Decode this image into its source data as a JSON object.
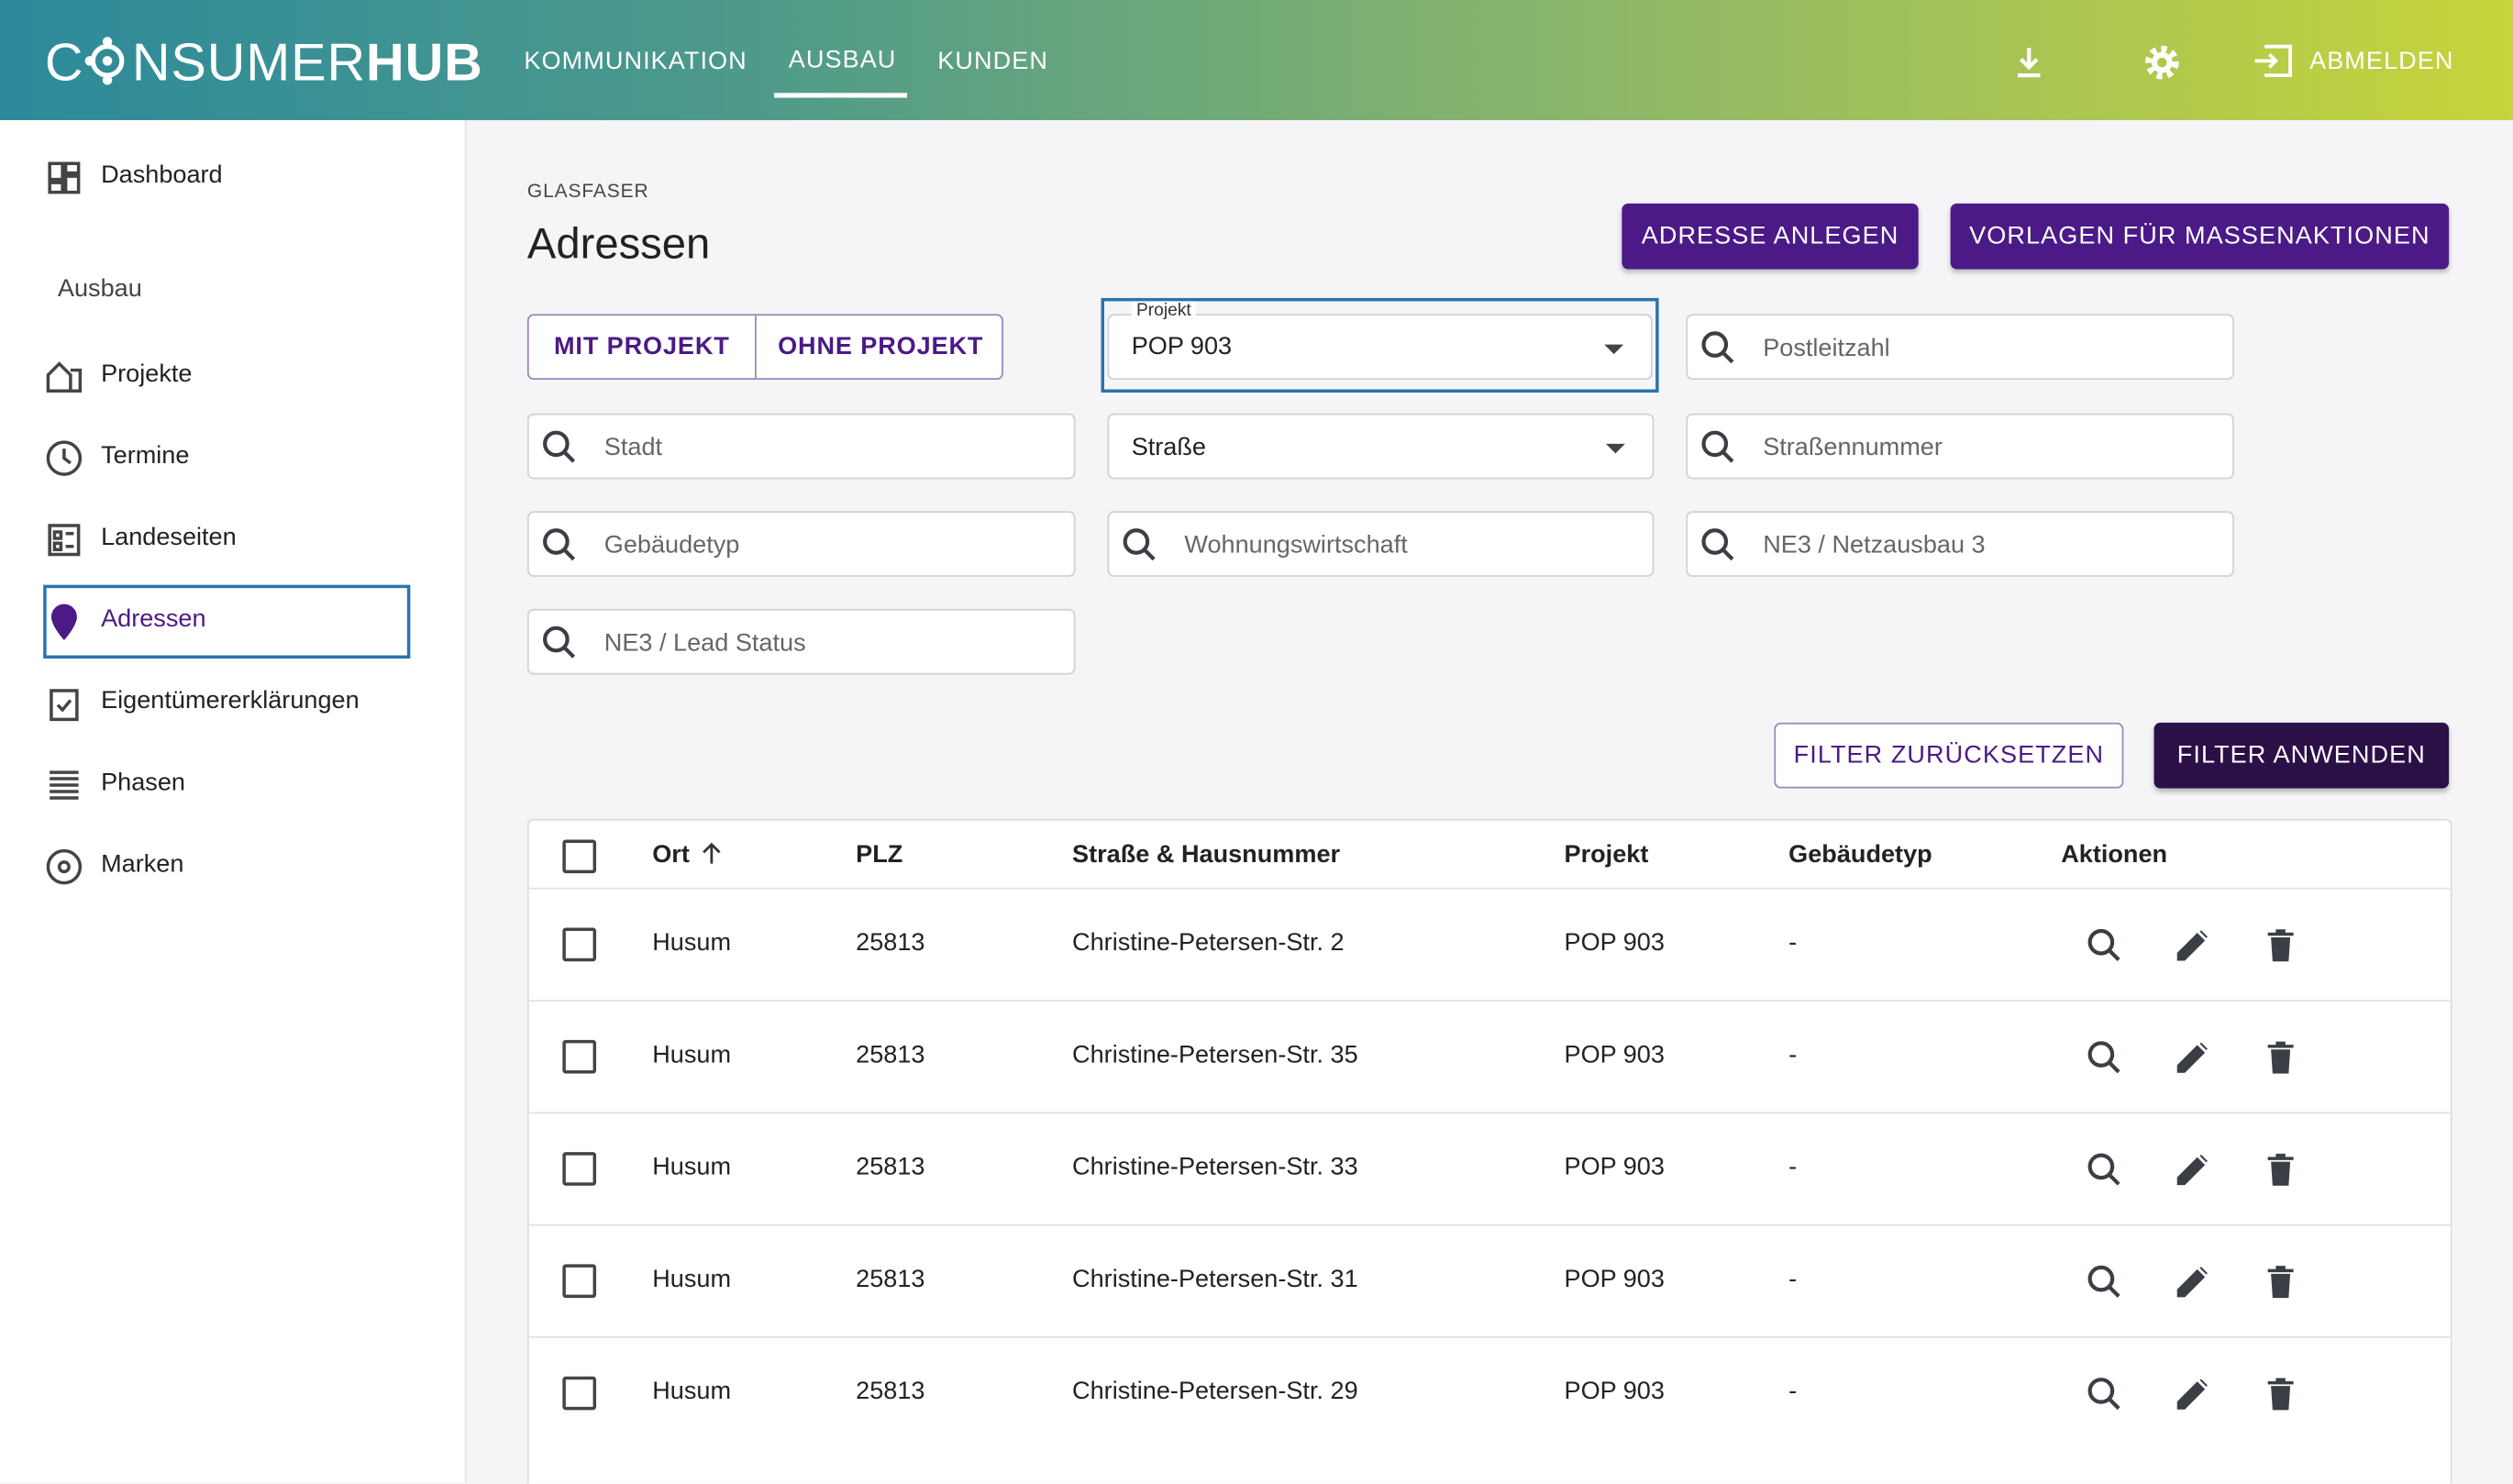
{
  "header": {
    "logo_start": "C",
    "logo_middle": "NSUMER",
    "logo_end": "HUB",
    "nav": [
      "KOMMUNIKATION",
      "AUSBAU",
      "KUNDEN"
    ],
    "logout": "ABMELDEN"
  },
  "sidebar": {
    "top": "Dashboard",
    "section": "Ausbau",
    "items": [
      "Projekte",
      "Termine",
      "Landeseiten",
      "Adressen",
      "Eigentümererklärungen",
      "Phasen",
      "Marken"
    ]
  },
  "page": {
    "breadcrumb": "GLASFASER",
    "title": "Adressen",
    "buttons": [
      "ADRESSE ANLEGEN",
      "VORLAGEN FÜR MASSENAKTIONEN"
    ]
  },
  "filters": {
    "toggle": [
      "MIT PROJEKT",
      "OHNE PROJEKT"
    ],
    "project_label": "Projekt",
    "project_value": "POP 903",
    "postcode": "Postleitzahl",
    "city": "Stadt",
    "street": "Straße",
    "street_number": "Straßennummer",
    "building_type": "Gebäudetyp",
    "housing": "Wohnungswirtschaft",
    "ne3_network": "NE3 / Netzausbau 3",
    "ne3_lead": "NE3 / Lead Status",
    "reset": "FILTER ZURÜCKSETZEN",
    "apply": "FILTER ANWENDEN"
  },
  "table": {
    "columns": [
      "Ort",
      "PLZ",
      "Straße & Hausnummer",
      "Projekt",
      "Gebäudetyp",
      "Aktionen"
    ],
    "rows": [
      [
        "Husum",
        "25813",
        "Christine-Petersen-Str. 2",
        "POP 903",
        "-"
      ],
      [
        "Husum",
        "25813",
        "Christine-Petersen-Str. 35",
        "POP 903",
        "-"
      ],
      [
        "Husum",
        "25813",
        "Christine-Petersen-Str. 33",
        "POP 903",
        "-"
      ],
      [
        "Husum",
        "25813",
        "Christine-Petersen-Str. 31",
        "POP 903",
        "-"
      ],
      [
        "Husum",
        "25813",
        "Christine-Petersen-Str. 29",
        "POP 903",
        "-"
      ]
    ]
  }
}
